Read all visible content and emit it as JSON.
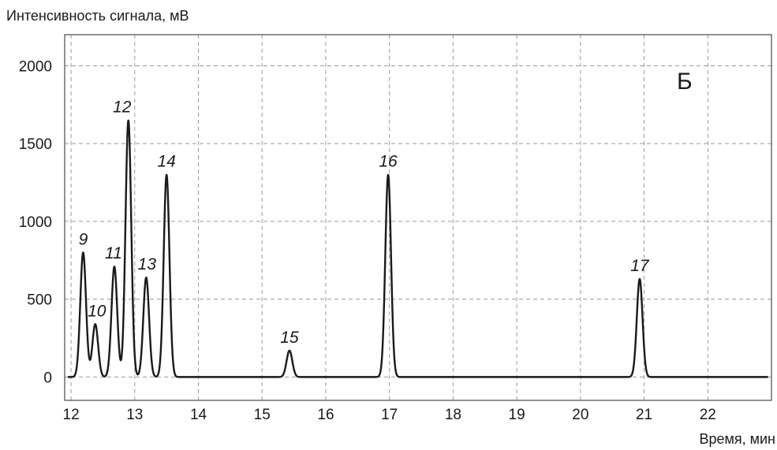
{
  "chart_data": {
    "type": "line",
    "ylabel": "Интенсивность сигнала, мВ",
    "xlabel": "Время, мин",
    "panel_letter": "Б",
    "xlim": [
      11.9,
      23.0
    ],
    "ylim": [
      -150,
      2200
    ],
    "x_ticks": [
      12,
      13,
      14,
      15,
      16,
      17,
      18,
      19,
      20,
      21,
      22
    ],
    "y_ticks": [
      0,
      500,
      1000,
      1500,
      2000
    ],
    "grid": true,
    "baseline": 0,
    "peaks": [
      {
        "label": "9",
        "x": 12.19,
        "y": 800
      },
      {
        "label": "10",
        "x": 12.38,
        "y": 340
      },
      {
        "label": "11",
        "x": 12.68,
        "y": 710
      },
      {
        "label": "12",
        "x": 12.9,
        "y": 1650
      },
      {
        "label": "13",
        "x": 13.18,
        "y": 640
      },
      {
        "label": "14",
        "x": 13.5,
        "y": 1300
      },
      {
        "label": "15",
        "x": 15.43,
        "y": 170
      },
      {
        "label": "16",
        "x": 16.98,
        "y": 1300
      },
      {
        "label": "17",
        "x": 20.93,
        "y": 630
      }
    ]
  }
}
